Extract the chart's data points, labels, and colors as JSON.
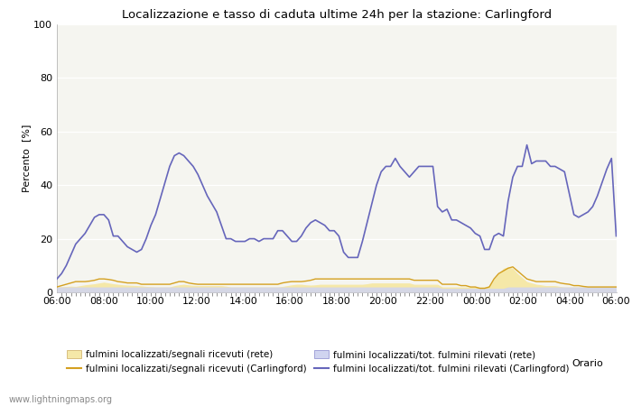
{
  "title": "Localizzazione e tasso di caduta ultime 24h per la stazione: Carlingford",
  "xlabel": "Orario",
  "ylabel": "Percento  [%]",
  "ylim": [
    0,
    100
  ],
  "yticks": [
    0,
    20,
    40,
    60,
    80,
    100
  ],
  "xtick_labels": [
    "06:00",
    "08:00",
    "10:00",
    "12:00",
    "14:00",
    "16:00",
    "18:00",
    "20:00",
    "22:00",
    "00:00",
    "02:00",
    "04:00",
    "06:00"
  ],
  "background_color": "#ffffff",
  "plot_bg_color": "#f5f5f0",
  "watermark": "www.lightningmaps.org",
  "line_blue_color": "#6666bb",
  "fill_yellow_color": "#f5e8a8",
  "fill_lavender_color": "#d0d4f0",
  "line_orange_color": "#d4a020",
  "legend": [
    {
      "label": "fulmini localizzati/segnali ricevuti (rete)",
      "type": "fill"
    },
    {
      "label": "fulmini localizzati/segnali ricevuti (Carlingford)",
      "type": "line"
    },
    {
      "label": "fulmini localizzati/tot. fulmini rilevati (rete)",
      "type": "fill"
    },
    {
      "label": "fulmini localizzati/tot. fulmini rilevati (Carlingford)",
      "type": "line"
    }
  ],
  "series": {
    "segnali_rete": [
      2.0,
      2.1,
      2.2,
      2.3,
      2.2,
      2.5,
      2.8,
      3.0,
      3.2,
      3.5,
      3.8,
      3.5,
      3.2,
      3.0,
      2.8,
      2.7,
      2.6,
      2.5,
      2.4,
      2.2,
      2.1,
      2.0,
      2.0,
      2.0,
      2.0,
      2.5,
      2.8,
      3.0,
      2.8,
      2.6,
      2.5,
      2.5,
      2.5,
      2.5,
      2.5,
      2.5,
      2.3,
      2.0,
      2.0,
      2.0,
      2.0,
      2.0,
      2.0,
      2.0,
      2.0,
      2.0,
      2.0,
      2.0,
      2.2,
      2.5,
      2.8,
      3.0,
      3.0,
      2.8,
      2.7,
      2.8,
      3.0,
      3.0,
      3.0,
      3.0,
      3.0,
      3.0,
      3.0,
      3.0,
      3.0,
      3.0,
      3.2,
      3.5,
      3.5,
      3.5,
      3.5,
      3.5,
      3.5,
      3.5,
      3.5,
      3.5,
      3.0,
      3.0,
      3.0,
      3.0,
      3.0,
      3.0,
      2.0,
      2.0,
      2.0,
      2.0,
      2.0,
      2.0,
      2.0,
      2.0,
      2.0,
      2.0,
      2.5,
      5.0,
      7.0,
      9.0,
      9.5,
      9.0,
      7.0,
      5.5,
      4.0,
      3.5,
      3.0,
      2.8,
      2.5,
      2.5,
      2.5,
      2.2,
      2.0,
      2.0,
      2.0,
      2.0,
      2.0,
      2.0,
      2.0,
      2.0,
      2.0,
      2.0,
      2.0,
      2.0
    ],
    "segnali_carlingford": [
      2.0,
      2.5,
      3.0,
      3.5,
      4.0,
      4.0,
      4.0,
      4.2,
      4.5,
      5.0,
      5.0,
      4.8,
      4.5,
      4.0,
      3.8,
      3.5,
      3.5,
      3.5,
      3.0,
      3.0,
      3.0,
      3.0,
      3.0,
      3.0,
      3.0,
      3.5,
      4.0,
      4.0,
      3.5,
      3.2,
      3.0,
      3.0,
      3.0,
      3.0,
      3.0,
      3.0,
      3.0,
      3.0,
      3.0,
      3.0,
      3.0,
      3.0,
      3.0,
      3.0,
      3.0,
      3.0,
      3.0,
      3.0,
      3.5,
      3.8,
      4.0,
      4.0,
      4.0,
      4.2,
      4.5,
      5.0,
      5.0,
      5.0,
      5.0,
      5.0,
      5.0,
      5.0,
      5.0,
      5.0,
      5.0,
      5.0,
      5.0,
      5.0,
      5.0,
      5.0,
      5.0,
      5.0,
      5.0,
      5.0,
      5.0,
      5.0,
      4.5,
      4.5,
      4.5,
      4.5,
      4.5,
      4.5,
      3.0,
      3.0,
      3.0,
      3.0,
      2.5,
      2.5,
      2.0,
      2.0,
      1.5,
      1.5,
      2.0,
      5.0,
      7.0,
      8.0,
      9.0,
      9.5,
      8.0,
      6.5,
      5.0,
      4.5,
      4.0,
      4.0,
      4.0,
      4.0,
      4.0,
      3.5,
      3.2,
      3.0,
      2.5,
      2.5,
      2.2,
      2.0,
      2.0,
      2.0,
      2.0,
      2.0,
      2.0,
      2.0
    ],
    "totale_rete": [
      2.0,
      2.0,
      2.0,
      2.0,
      2.0,
      2.0,
      2.0,
      2.0,
      2.0,
      2.0,
      2.0,
      2.0,
      2.0,
      2.0,
      2.0,
      2.0,
      2.0,
      2.0,
      2.0,
      2.0,
      2.0,
      2.0,
      2.0,
      2.0,
      2.0,
      2.0,
      2.0,
      2.0,
      2.0,
      2.0,
      2.0,
      2.0,
      2.0,
      2.0,
      2.0,
      2.0,
      2.0,
      2.0,
      2.0,
      2.0,
      2.0,
      2.0,
      2.0,
      2.0,
      2.0,
      2.0,
      2.0,
      2.0,
      2.0,
      2.0,
      2.0,
      2.0,
      2.0,
      2.0,
      2.0,
      2.0,
      2.0,
      2.0,
      2.0,
      2.0,
      2.0,
      2.0,
      2.0,
      2.0,
      2.0,
      2.0,
      2.0,
      2.0,
      2.0,
      2.0,
      2.0,
      2.0,
      2.0,
      2.0,
      2.0,
      2.0,
      2.0,
      2.0,
      2.0,
      2.0,
      2.0,
      2.0,
      1.5,
      1.5,
      1.5,
      1.5,
      1.5,
      1.5,
      1.5,
      1.5,
      1.5,
      1.5,
      1.5,
      1.5,
      1.5,
      1.5,
      2.0,
      2.0,
      2.0,
      2.0,
      2.0,
      2.0,
      2.0,
      2.0,
      2.0,
      2.0,
      2.0,
      2.0,
      2.0,
      2.0,
      2.0,
      2.0,
      2.0,
      2.0,
      2.0,
      2.0,
      2.0,
      2.0,
      2.0,
      2.0
    ],
    "totale_carlingford": [
      5,
      7,
      10,
      14,
      18,
      20,
      22,
      25,
      28,
      29,
      29,
      27,
      21,
      21,
      19,
      17,
      16,
      15,
      16,
      20,
      25,
      29,
      35,
      41,
      47,
      51,
      52,
      51,
      49,
      47,
      44,
      40,
      36,
      33,
      30,
      25,
      20,
      20,
      19,
      19,
      19,
      20,
      20,
      19,
      20,
      20,
      20,
      23,
      23,
      21,
      19,
      19,
      21,
      24,
      26,
      27,
      26,
      25,
      23,
      23,
      21,
      15,
      13,
      13,
      13,
      19,
      26,
      33,
      40,
      45,
      47,
      47,
      50,
      47,
      45,
      43,
      45,
      47,
      47,
      47,
      47,
      32,
      30,
      31,
      27,
      27,
      26,
      25,
      24,
      22,
      21,
      16,
      16,
      21,
      22,
      21,
      34,
      43,
      47,
      47,
      55,
      48,
      49,
      49,
      49,
      47,
      47,
      46,
      45,
      37,
      29,
      28,
      29,
      30,
      32,
      36,
      41,
      46,
      50,
      21
    ]
  }
}
